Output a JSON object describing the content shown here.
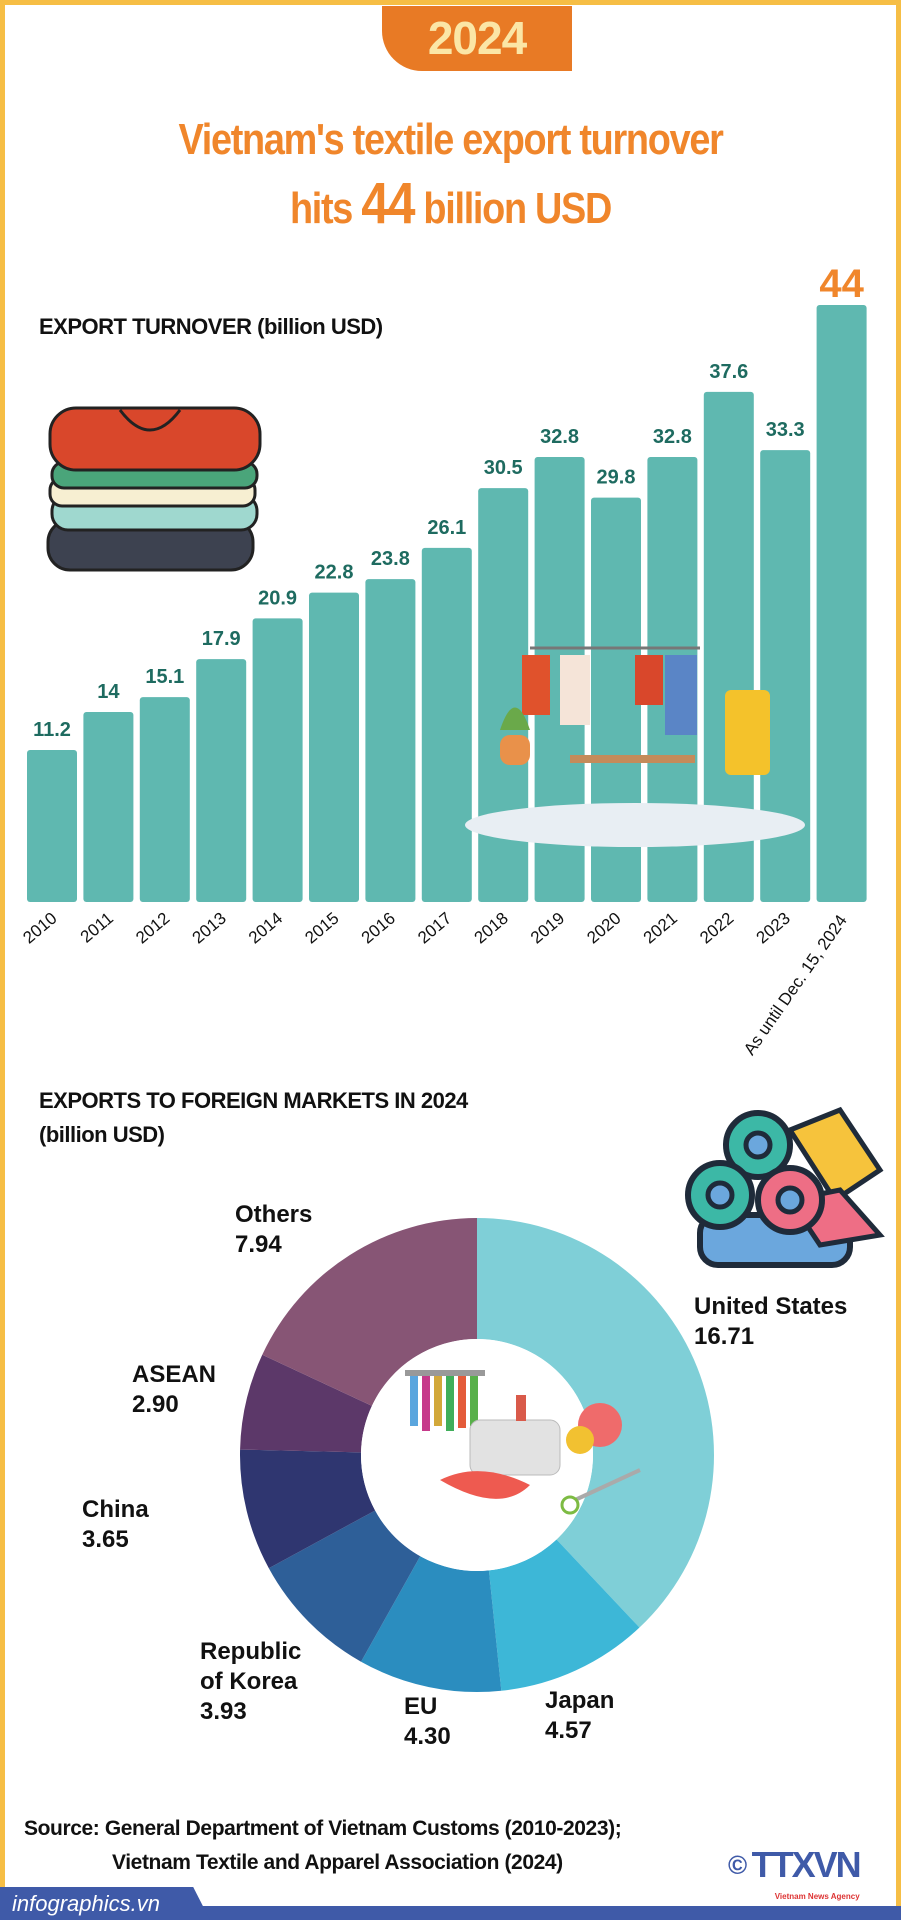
{
  "header": {
    "year_badge": "2024",
    "title_line1": "Vietnam's textile export turnover",
    "title_pre": "hits",
    "title_number": "44",
    "title_post": "billion USD"
  },
  "colors": {
    "accent": "#f0862b",
    "badge": "#e87a25",
    "bar": "#5fb8b0",
    "bar_label": "#1e6b60",
    "frame": "#f6be45",
    "footer": "#3f5aa8"
  },
  "chart_data": [
    {
      "type": "bar",
      "title": "EXPORT TURNOVER (billion USD)",
      "categories": [
        "2010",
        "2011",
        "2012",
        "2013",
        "2014",
        "2015",
        "2016",
        "2017",
        "2018",
        "2019",
        "2020",
        "2021",
        "2022",
        "2023",
        "As until Dec. 15, 2024"
      ],
      "values": [
        11.2,
        14,
        15.1,
        17.9,
        20.9,
        22.8,
        23.8,
        26.1,
        30.5,
        32.8,
        29.8,
        32.8,
        37.6,
        33.3,
        44
      ],
      "value_labels": [
        "11.2",
        "14",
        "15.1",
        "17.9",
        "20.9",
        "22.8",
        "23.8",
        "26.1",
        "30.5",
        "32.8",
        "29.8",
        "32.8",
        "37.6",
        "33.3",
        "44"
      ],
      "ylim": [
        0,
        44
      ],
      "grid": false
    },
    {
      "type": "pie",
      "title": "EXPORTS TO FOREIGN MARKETS IN 2024",
      "subtitle": "(billion USD)",
      "donut": true,
      "slices": [
        {
          "name": "United States",
          "value": 16.71,
          "label": "16.71",
          "color": "#7fcfd7"
        },
        {
          "name": "Japan",
          "value": 4.57,
          "label": "4.57",
          "color": "#3db7d7"
        },
        {
          "name": "EU",
          "value": 4.3,
          "label": "4.30",
          "color": "#2b8dbf"
        },
        {
          "name": "Republic of Korea",
          "value": 3.93,
          "label": "3.93",
          "color": "#2e5f98"
        },
        {
          "name": "China",
          "value": 3.65,
          "label": "3.65",
          "color": "#2f3670"
        },
        {
          "name": "ASEAN",
          "value": 2.9,
          "label": "2.90",
          "color": "#5c3869"
        },
        {
          "name": "Others",
          "value": 7.94,
          "label": "7.94",
          "color": "#875575"
        }
      ]
    }
  ],
  "pie_labels": {
    "us_1": "United States",
    "korea_1": "Republic",
    "korea_2": "of Korea"
  },
  "source": {
    "prefix": "Source:",
    "line1": "General Department of Vietnam Customs (2010-2023);",
    "line2": "Vietnam Textile and Apparel Association (2024)"
  },
  "footer": {
    "site": "infographics.vn",
    "logo": "TTXVN",
    "logo_sub": "Vietnam News Agency",
    "copyright": "©"
  }
}
